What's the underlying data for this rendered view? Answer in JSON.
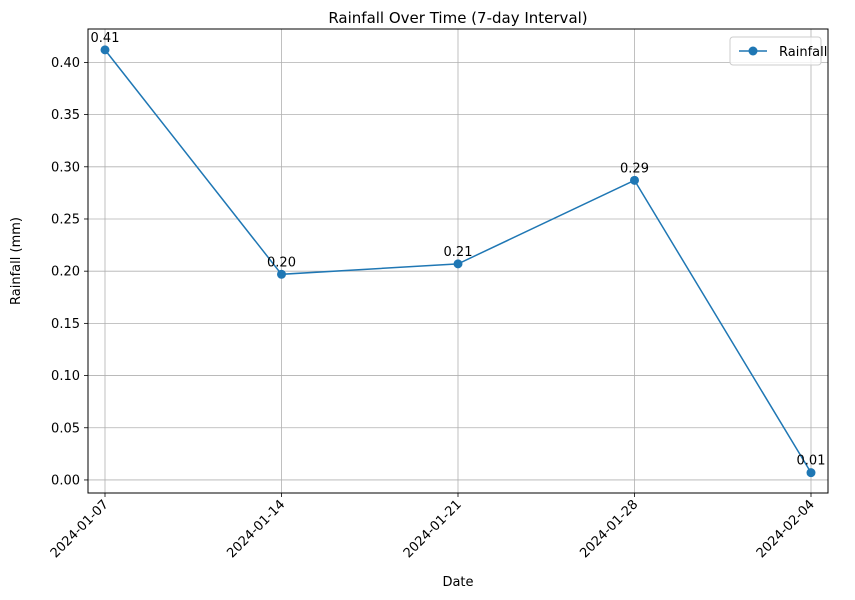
{
  "chart_data": {
    "type": "line",
    "title": "Rainfall Over Time (7-day Interval)",
    "xlabel": "Date",
    "ylabel": "Rainfall (mm)",
    "categories": [
      "2024-01-07",
      "2024-01-14",
      "2024-01-21",
      "2024-01-28",
      "2024-02-04"
    ],
    "series": [
      {
        "name": "Rainfall",
        "values": [
          0.412,
          0.197,
          0.207,
          0.287,
          0.007
        ],
        "data_labels": [
          "0.41",
          "0.20",
          "0.21",
          "0.29",
          "0.01"
        ],
        "color": "#1f77b4",
        "marker": "circle"
      }
    ],
    "yticks": [
      "0.00",
      "0.05",
      "0.10",
      "0.15",
      "0.20",
      "0.25",
      "0.30",
      "0.35",
      "0.40"
    ],
    "ylim": [
      -0.0125,
      0.432
    ],
    "grid": true,
    "legend_position": "top-right",
    "xtick_rotation": 45
  }
}
